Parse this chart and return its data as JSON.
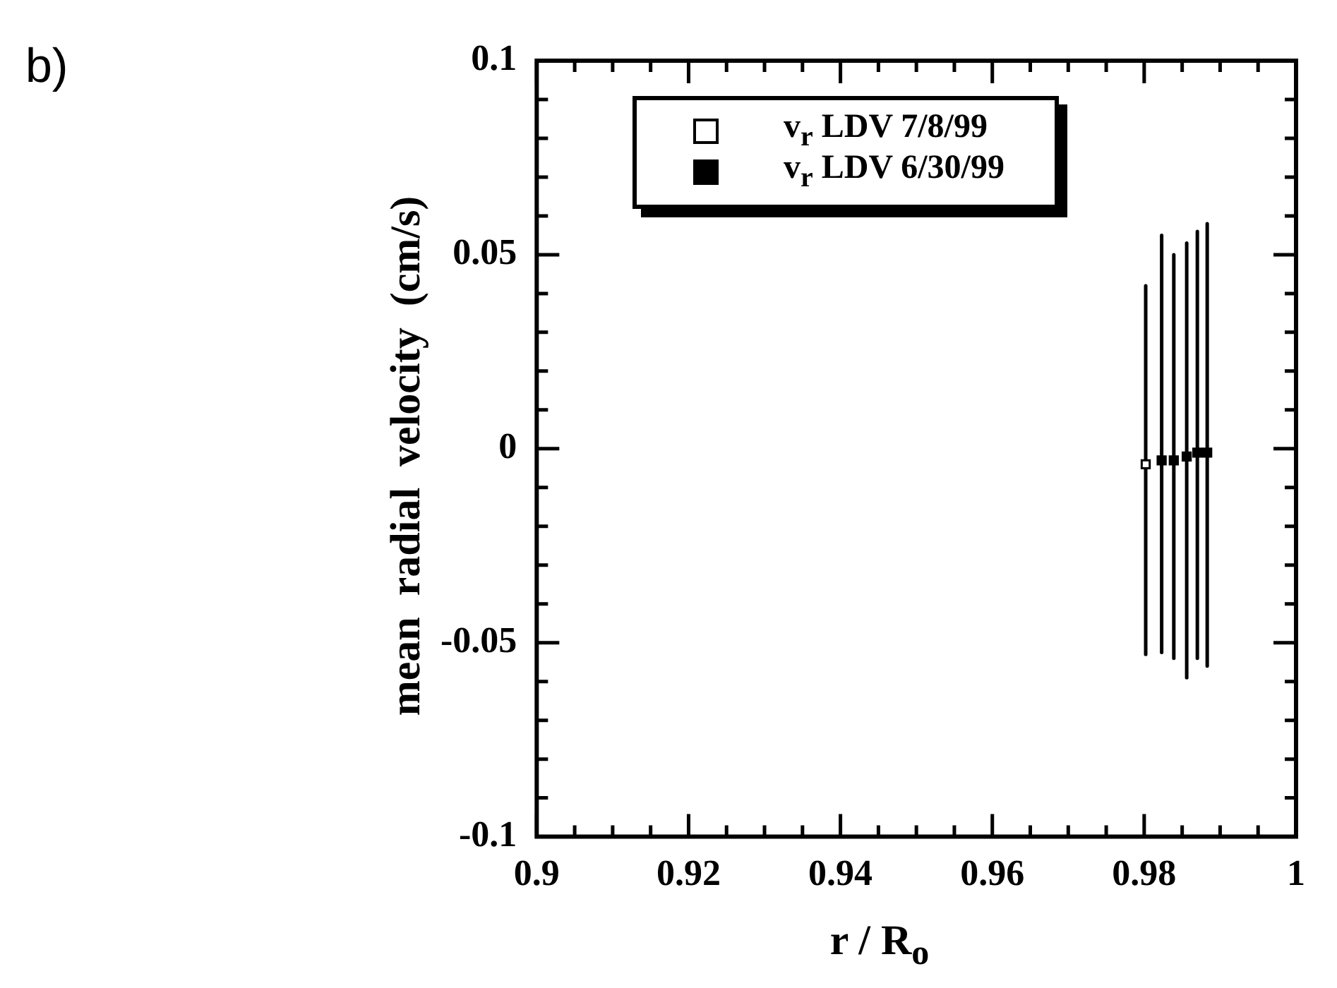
{
  "chart_data": {
    "type": "scatter",
    "xlabel": "r / R$_{o}$",
    "ylabel": "mean  radial  velocity  (cm/s)",
    "annotations": [
      "b)"
    ],
    "legend": "top",
    "marker": "square",
    "xlim": [
      0.9,
      1
    ],
    "ylim": [
      -0.1,
      0.1
    ],
    "xticks": [
      0.9,
      {
        "value": 0.905,
        "label": null
      },
      {
        "value": 0.91,
        "label": null
      },
      {
        "value": 0.915,
        "label": null
      },
      0.92,
      {
        "value": 0.925,
        "label": null
      },
      {
        "value": 0.93,
        "label": null
      },
      {
        "value": 0.935,
        "label": null
      },
      0.94,
      {
        "value": 0.945,
        "label": null
      },
      {
        "value": 0.95,
        "label": null
      },
      {
        "value": 0.955,
        "label": null
      },
      0.96,
      {
        "value": 0.965,
        "label": null
      },
      {
        "value": 0.97,
        "label": null
      },
      {
        "value": 0.975,
        "label": null
      },
      0.98,
      {
        "value": 0.985,
        "label": null
      },
      {
        "value": 0.99,
        "label": null
      },
      {
        "value": 0.995,
        "label": null
      },
      1
    ],
    "yticks": [
      -0.1,
      {
        "value": -0.09,
        "label": null
      },
      {
        "value": -0.08,
        "label": null
      },
      {
        "value": -0.07,
        "label": null
      },
      {
        "value": -0.06,
        "label": null
      },
      -0.05,
      {
        "value": -0.04,
        "label": null
      },
      {
        "value": -0.03,
        "label": null
      },
      {
        "value": -0.02,
        "label": null
      },
      {
        "value": -0.01,
        "label": null
      },
      0,
      {
        "value": 0.01,
        "label": null
      },
      {
        "value": 0.02,
        "label": null
      },
      {
        "value": 0.03,
        "label": null
      },
      {
        "value": 0.04,
        "label": null
      },
      0.05,
      {
        "value": 0.06,
        "label": null
      },
      {
        "value": 0.07,
        "label": null
      },
      {
        "value": 0.08,
        "label": null
      },
      {
        "value": 0.09,
        "label": null
      },
      0.1
    ],
    "series": [
      {
        "name": "v$_{r}$ LDV 7/8/99",
        "color": "#ffffff",
        "x": [
          0.9802
        ],
        "values": [
          -0.004
        ],
        "errors": [
          [
            -0.053,
            0.042
          ]
        ]
      },
      {
        "name": "v$_{r}$ LDV 6/30/99",
        "color": "#000000",
        "x": [
          0.9823,
          0.9839,
          0.9856,
          0.987,
          0.9883
        ],
        "values": [
          -0.003,
          -0.003,
          -0.002,
          -0.001,
          -0.001
        ],
        "errors": [
          [
            -0.0525,
            0.055
          ],
          [
            -0.054,
            0.05
          ],
          [
            -0.059,
            0.053
          ],
          [
            -0.054,
            0.056
          ],
          [
            -0.056,
            0.058
          ]
        ]
      }
    ]
  }
}
